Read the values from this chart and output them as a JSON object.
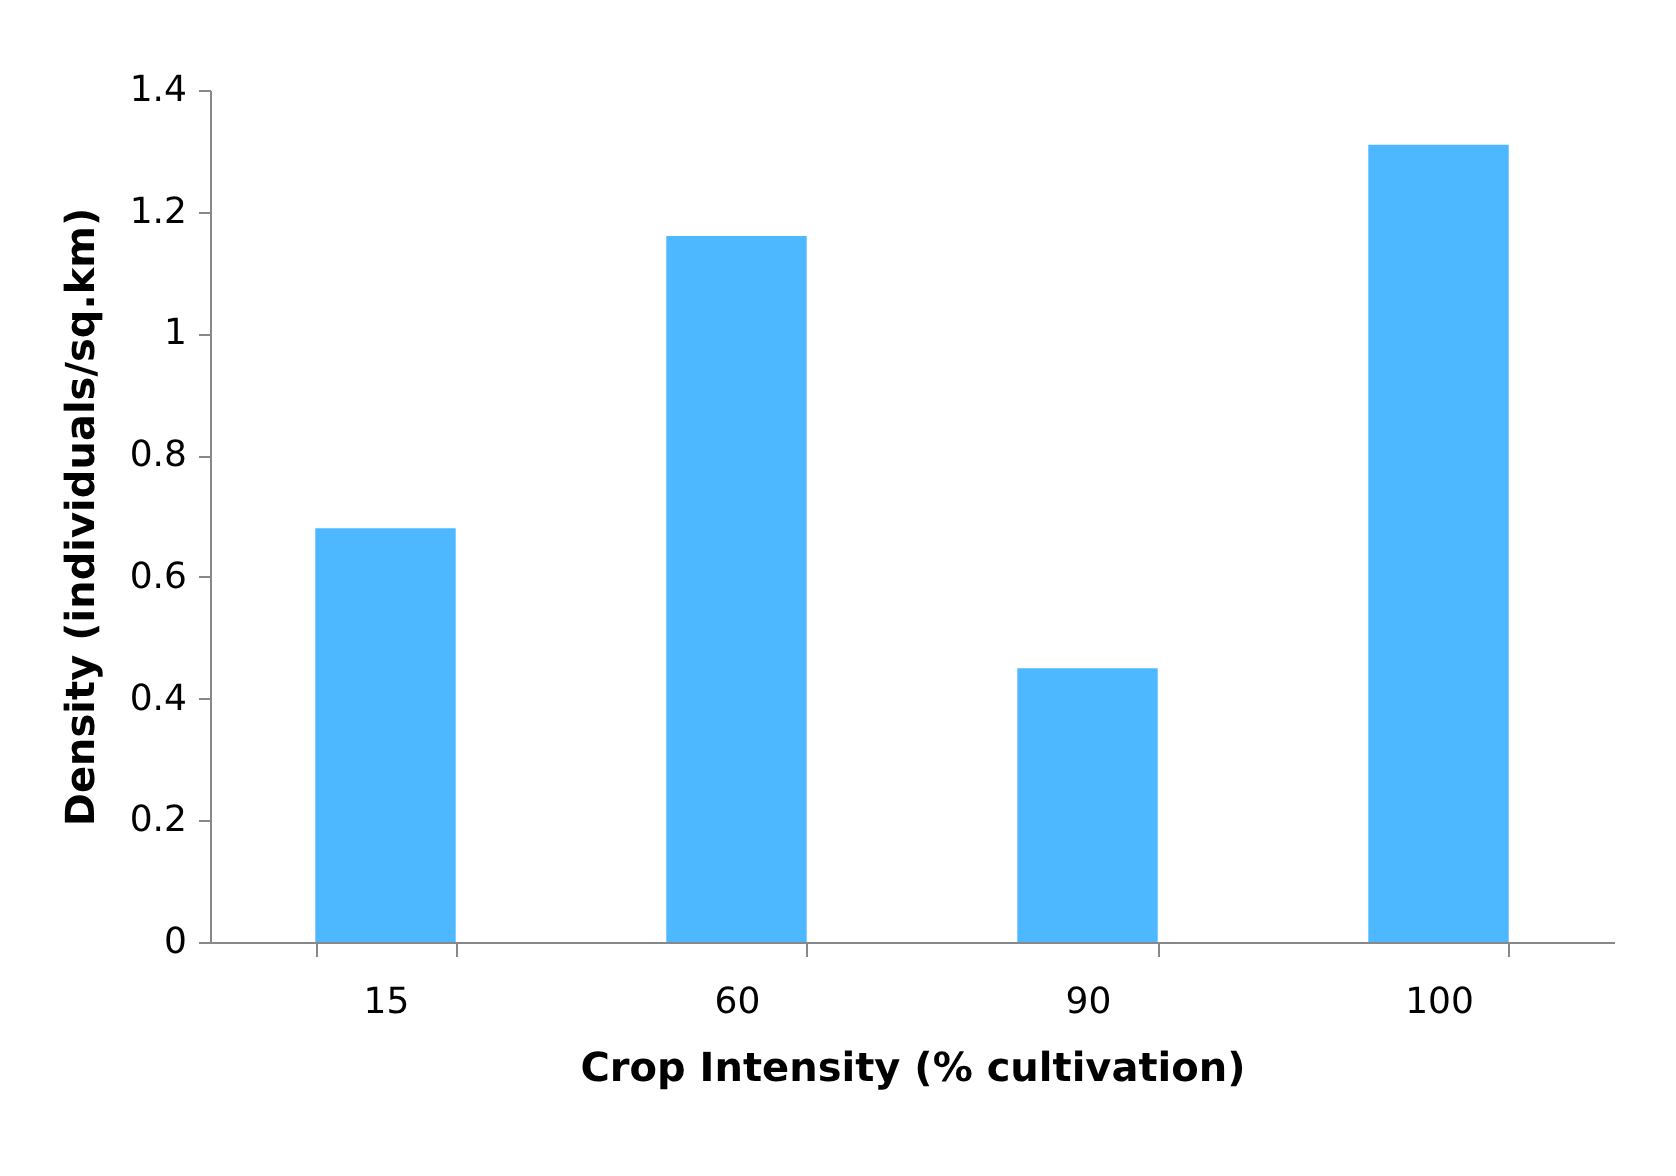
{
  "chart_data": {
    "type": "bar",
    "xlabel": "Crop Intensity (% cultivation)",
    "ylabel": "Density (individuals/sq.km)",
    "categories": [
      "15",
      "60",
      "90",
      "100"
    ],
    "values": [
      0.68,
      1.16,
      0.45,
      1.31
    ],
    "color": "#4db8ff",
    "ylim": [
      0,
      1.4
    ],
    "yticks": [
      0,
      0.2,
      0.4,
      0.6,
      0.8,
      1,
      1.2,
      1.4
    ],
    "grid": false
  }
}
